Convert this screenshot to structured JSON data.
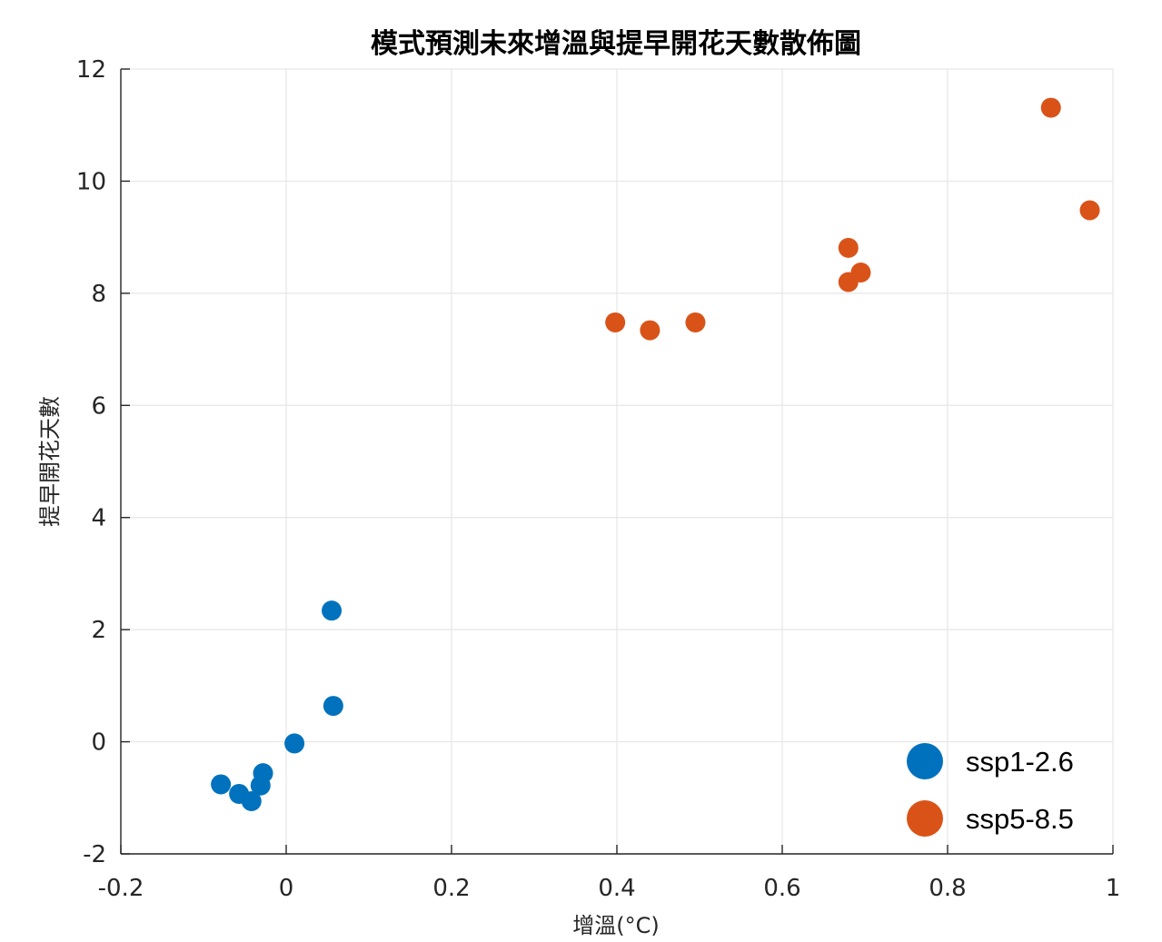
{
  "chart_data": {
    "type": "scatter",
    "title": "模式預測未來增溫與提早開花天數散佈圖",
    "xlabel": "增溫(°C)",
    "ylabel": "提早開花天數",
    "xlim": [
      -0.2,
      1
    ],
    "ylim": [
      -2,
      12
    ],
    "x_ticks": [
      -0.2,
      0,
      0.2,
      0.4,
      0.6,
      0.8,
      1
    ],
    "x_tick_labels": [
      "-0.2",
      "0",
      "0.2",
      "0.4",
      "0.6",
      "0.8",
      "1"
    ],
    "y_ticks": [
      -2,
      0,
      2,
      4,
      6,
      8,
      10,
      12
    ],
    "y_tick_labels": [
      "-2",
      "0",
      "2",
      "4",
      "6",
      "8",
      "10",
      "12"
    ],
    "grid": true,
    "legend_position": "bottom-right",
    "series": [
      {
        "name": "ssp1-2.6",
        "color": "#0072bd",
        "points": [
          [
            -0.079,
            -0.76
          ],
          [
            -0.057,
            -0.93
          ],
          [
            -0.042,
            -1.06
          ],
          [
            -0.031,
            -0.78
          ],
          [
            -0.028,
            -0.56
          ],
          [
            0.01,
            -0.03
          ],
          [
            0.055,
            2.34
          ],
          [
            0.057,
            0.64
          ]
        ]
      },
      {
        "name": "ssp5-8.5",
        "color": "#d95319",
        "points": [
          [
            0.398,
            7.48
          ],
          [
            0.44,
            7.34
          ],
          [
            0.495,
            7.48
          ],
          [
            0.68,
            8.81
          ],
          [
            0.68,
            8.2
          ],
          [
            0.695,
            8.37
          ],
          [
            0.925,
            11.31
          ],
          [
            0.972,
            9.48
          ]
        ]
      }
    ]
  }
}
